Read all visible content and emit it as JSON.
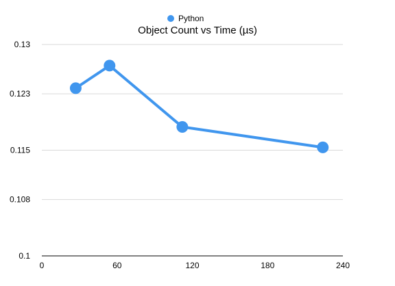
{
  "chart_data": {
    "type": "line",
    "title": "Object Count vs Time (µs)",
    "xlabel": "",
    "ylabel": "",
    "xlim": [
      0,
      240
    ],
    "ylim": [
      0.1,
      0.13
    ],
    "x_ticks": [
      0,
      60,
      120,
      180,
      240
    ],
    "y_ticks": [
      0.1,
      0.108,
      0.115,
      0.123,
      0.13
    ],
    "x_tick_labels": [
      "0",
      "60",
      "120",
      "180",
      "240"
    ],
    "y_tick_labels": [
      "0.1",
      "0.108",
      "0.115",
      "0.123",
      "0.13"
    ],
    "grid": "horizontal",
    "legend_position": "top-center",
    "series": [
      {
        "name": "Python",
        "color": "#4096ee",
        "points": [
          {
            "x": 27,
            "y": 0.1238
          },
          {
            "x": 54,
            "y": 0.127
          },
          {
            "x": 112,
            "y": 0.1183
          },
          {
            "x": 224,
            "y": 0.1154
          }
        ]
      }
    ]
  }
}
